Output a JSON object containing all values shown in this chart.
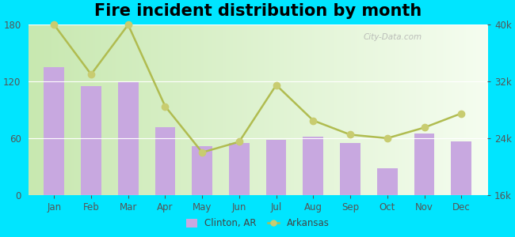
{
  "title": "Fire incident distribution by month",
  "months": [
    "Jan",
    "Feb",
    "Mar",
    "Apr",
    "May",
    "Jun",
    "Jul",
    "Aug",
    "Sep",
    "Oct",
    "Nov",
    "Dec"
  ],
  "clinton_values": [
    135,
    115,
    120,
    72,
    52,
    55,
    58,
    62,
    55,
    28,
    65,
    57
  ],
  "arkansas_values": [
    40000,
    33000,
    40000,
    28500,
    22000,
    23500,
    31500,
    26500,
    24500,
    24000,
    25500,
    27500
  ],
  "bar_color": "#c8a8e0",
  "line_color": "#b0bc50",
  "line_marker_color": "#c8cc70",
  "bg_color_outer": "#00e5ff",
  "bg_gradient_left": "#d0eec0",
  "bg_gradient_right": "#f0f8f0",
  "ylim_left": [
    0,
    180
  ],
  "ylim_right": [
    16000,
    40000
  ],
  "yticks_left": [
    0,
    60,
    120,
    180
  ],
  "yticks_right": [
    16000,
    24000,
    32000,
    40000
  ],
  "ytick_labels_right": [
    "16k",
    "24k",
    "32k",
    "40k"
  ],
  "legend_clinton": "Clinton, AR",
  "legend_arkansas": "Arkansas",
  "title_fontsize": 15,
  "watermark": "City-Data.com"
}
